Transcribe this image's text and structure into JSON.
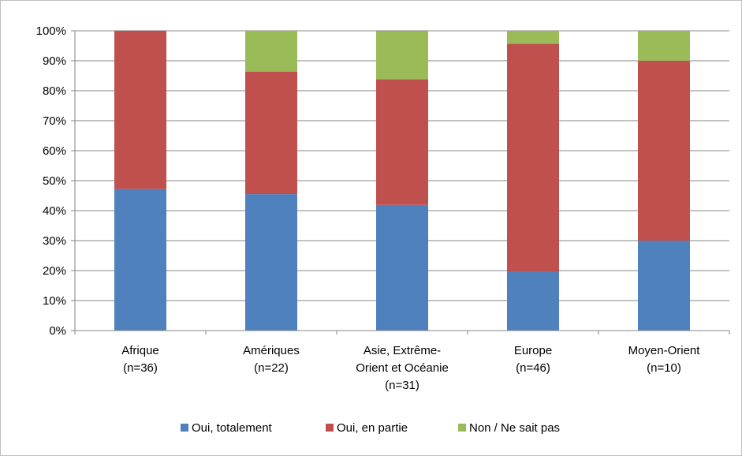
{
  "chart_data": {
    "type": "bar",
    "stacked": true,
    "percent": true,
    "categories": [
      [
        "Afrique",
        "(n=36)"
      ],
      [
        "Amériques",
        "(n=22)"
      ],
      [
        "Asie, Extrême-",
        "Orient et Océanie",
        "(n=31)"
      ],
      [
        "Europe",
        "(n=46)"
      ],
      [
        "Moyen-Orient",
        "(n=10)"
      ]
    ],
    "series": [
      {
        "name": "Oui, totalement",
        "color": "#4f81bd",
        "values": [
          47.2,
          45.5,
          41.9,
          19.6,
          30.0
        ]
      },
      {
        "name": "Oui, en partie",
        "color": "#c0504d",
        "values": [
          52.8,
          40.9,
          41.9,
          76.1,
          60.0
        ]
      },
      {
        "name": "Non / Ne sait pas",
        "color": "#9bbb59",
        "values": [
          0.0,
          13.6,
          16.1,
          4.3,
          10.0
        ]
      }
    ],
    "ylim": [
      0,
      100
    ],
    "yticks": [
      "0%",
      "10%",
      "20%",
      "30%",
      "40%",
      "50%",
      "60%",
      "70%",
      "80%",
      "90%",
      "100%"
    ],
    "grid": true,
    "legend_position": "bottom",
    "title": "",
    "xlabel": "",
    "ylabel": ""
  }
}
